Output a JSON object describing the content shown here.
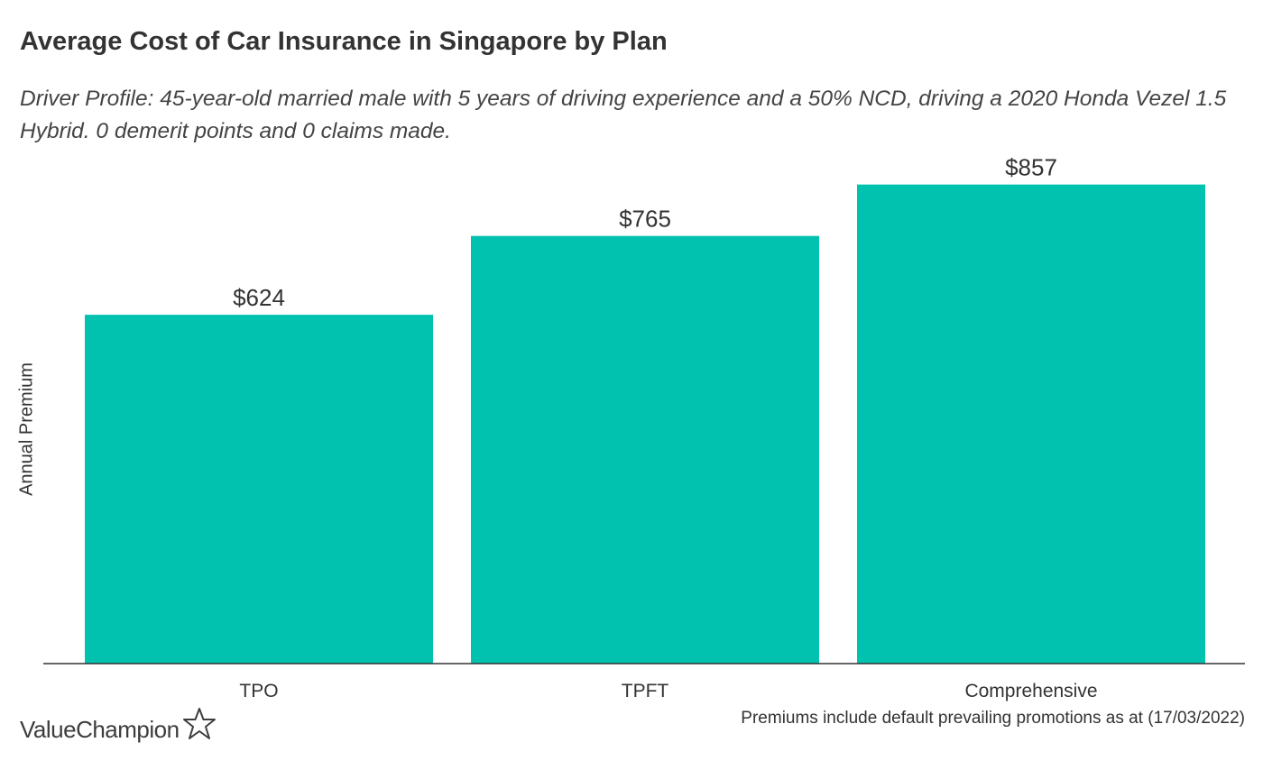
{
  "chart_data": {
    "type": "bar",
    "title": "Average Cost of Car Insurance in Singapore by Plan",
    "subtitle": "Driver Profile: 45-year-old married male with 5 years of driving experience and a 50% NCD, driving a 2020 Honda Vezel 1.5 Hybrid. 0 demerit points and 0 claims made.",
    "categories": [
      "TPO",
      "TPFT",
      "Comprehensive"
    ],
    "values": [
      624,
      765,
      857
    ],
    "data_labels": [
      "$624",
      "$765",
      "$857"
    ],
    "xlabel": "",
    "ylabel": "Annual Premium",
    "ylim": [
      0,
      900
    ],
    "grid": false,
    "bar_color": "#00c2ae"
  },
  "footnote": "Premiums include default prevailing promotions as at (17/03/2022)",
  "brand": {
    "name": "ValueChampion",
    "logo_icon": "star-outline-icon"
  }
}
